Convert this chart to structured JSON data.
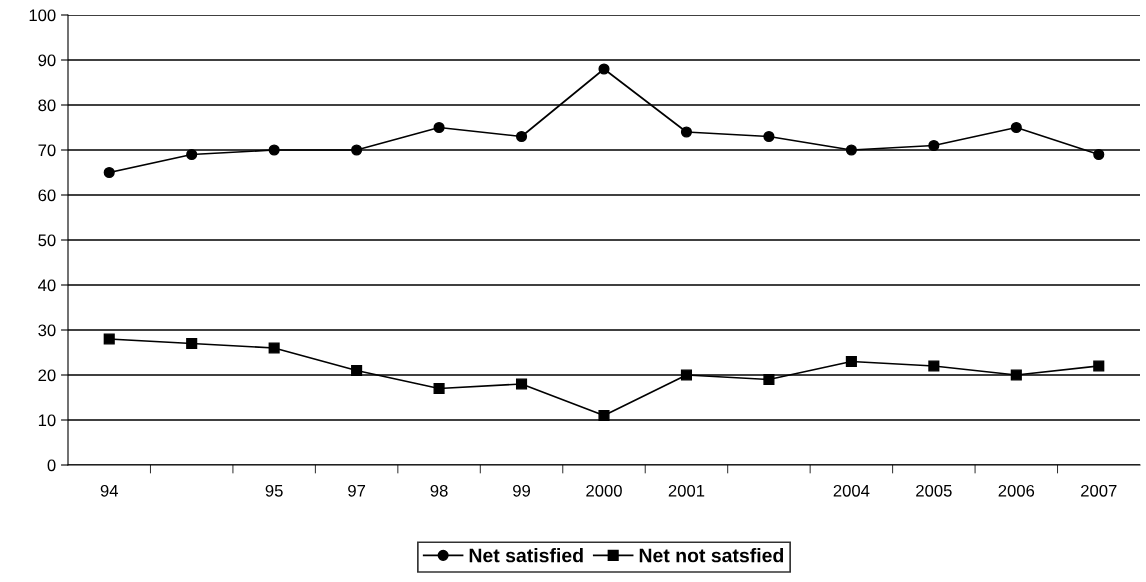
{
  "chart_data": {
    "type": "line",
    "categories": [
      "94",
      null,
      "95",
      "97",
      "98",
      "99",
      "2000",
      "2001",
      null,
      "2004",
      "2005",
      "2006",
      "2007"
    ],
    "series": [
      {
        "name": "Net satisfied",
        "color": "#000000",
        "marker": "circle",
        "values": [
          65,
          69,
          70,
          70,
          75,
          73,
          88,
          74,
          73,
          70,
          71,
          75,
          69
        ]
      },
      {
        "name": "Net not satsfied",
        "color": "#000000",
        "marker": "square",
        "values": [
          28,
          27,
          26,
          21,
          17,
          18,
          11,
          20,
          19,
          23,
          22,
          20,
          22
        ]
      }
    ],
    "ylim": [
      0,
      100
    ],
    "yticks": [
      0,
      10,
      20,
      30,
      40,
      50,
      60,
      70,
      80,
      90,
      100
    ],
    "grid": "y",
    "legend": "bottom",
    "line_style": "solid"
  }
}
